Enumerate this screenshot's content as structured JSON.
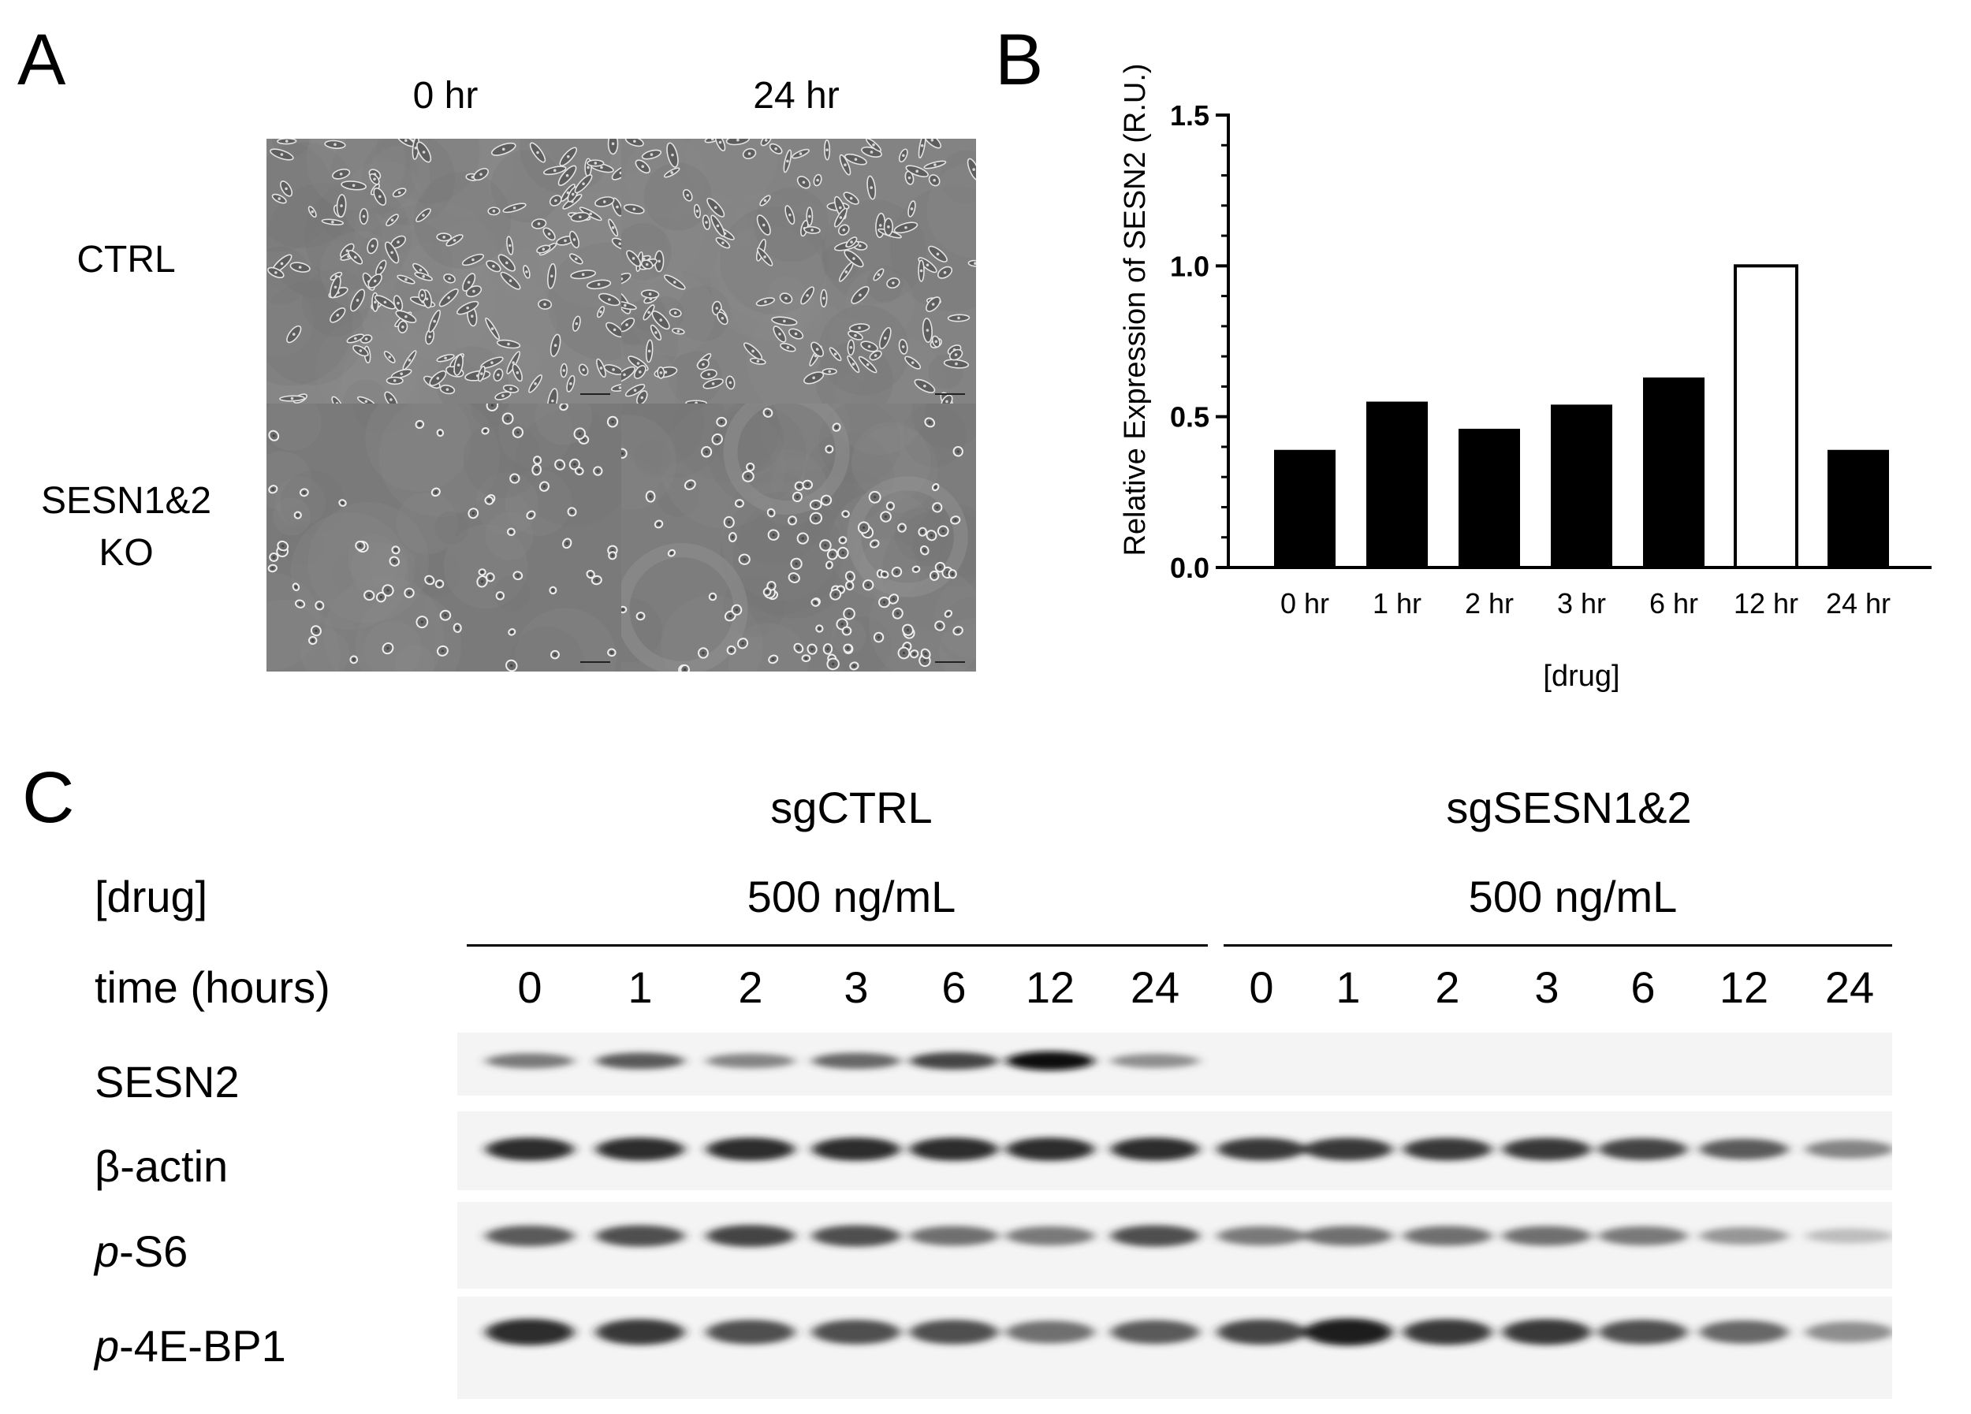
{
  "panels": {
    "a": "A",
    "b": "B",
    "c": "C"
  },
  "panel_a": {
    "columns": [
      "0 hr",
      "24 hr"
    ],
    "rows": {
      "ctrl": "CTRL",
      "ko_line1": "SESN1&2",
      "ko_line2": "KO"
    }
  },
  "chart_data": {
    "type": "bar",
    "categories": [
      "0 hr",
      "1 hr",
      "2 hr",
      "3 hr",
      "6 hr",
      "12 hr",
      "24 hr"
    ],
    "values": [
      0.39,
      0.55,
      0.46,
      0.54,
      0.63,
      1.0,
      0.39
    ],
    "highlight_category": "12 hr",
    "ylabel": "Relative Expression of SESN2 (R.U.)",
    "xlabel": "[drug]",
    "ylim": [
      0,
      1.5
    ],
    "yticks": [
      "0.0",
      "0.5",
      "1.0",
      "1.5"
    ],
    "colors": {
      "bar": "#000000",
      "highlight_fill": "#ffffff"
    }
  },
  "panel_c": {
    "groups": [
      "sgCTRL",
      "sgSESN1&2"
    ],
    "drug_label": "[drug]",
    "drug_doses": [
      "500 ng/mL",
      "500 ng/mL"
    ],
    "time_label": "time (hours)",
    "times_ctrl": [
      "0",
      "1",
      "2",
      "3",
      "6",
      "12",
      "24"
    ],
    "times_ko": [
      "0",
      "1",
      "2",
      "3",
      "6",
      "12",
      "24"
    ],
    "blot_rows": [
      {
        "prefix": "",
        "name": "SESN2"
      },
      {
        "prefix": "",
        "name": "β-actin"
      },
      {
        "prefix": "p",
        "name": "-S6"
      },
      {
        "prefix": "p",
        "name": "-4E-BP1"
      }
    ]
  }
}
